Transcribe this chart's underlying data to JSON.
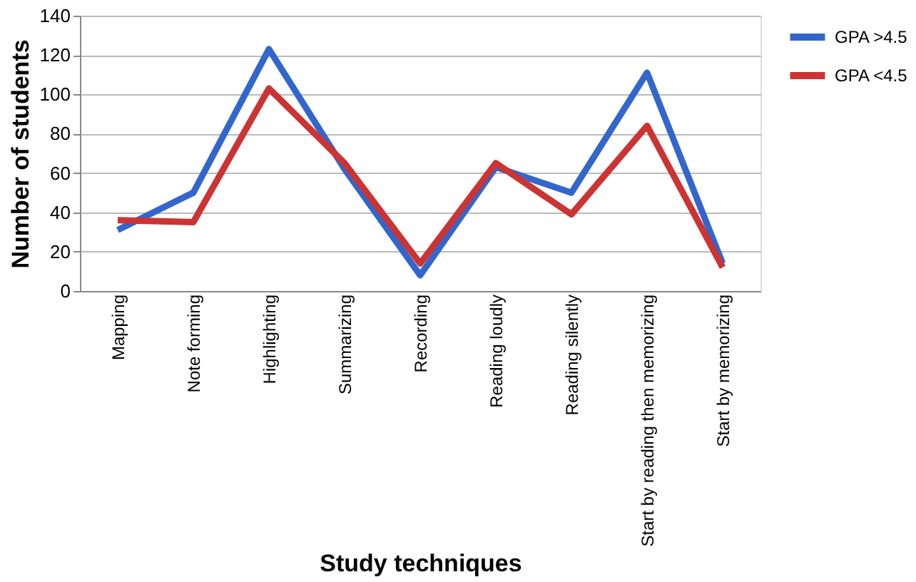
{
  "chart_data": {
    "type": "line",
    "xlabel": "Study techniques",
    "ylabel": "Number of students",
    "categories": [
      "Mapping",
      "Note forming",
      "Highlighting",
      "Summarizing",
      "Recording",
      "Reading loudly",
      "Reading silently",
      "Start by reading then memorizing",
      "Start by memorizing"
    ],
    "series": [
      {
        "name": "GPA >4.5",
        "color": "#3366cc",
        "values": [
          31,
          50,
          123,
          62,
          8,
          63,
          50,
          111,
          14
        ]
      },
      {
        "name": "GPA <4.5",
        "color": "#cc3333",
        "values": [
          36,
          35,
          103,
          65,
          14,
          65,
          39,
          84,
          12
        ]
      }
    ],
    "ylim": [
      0,
      140
    ],
    "yticks": [
      0,
      20,
      40,
      60,
      80,
      100,
      120,
      140
    ],
    "grid": "y",
    "legend": "right",
    "marker": "none",
    "line_style": "solid"
  }
}
